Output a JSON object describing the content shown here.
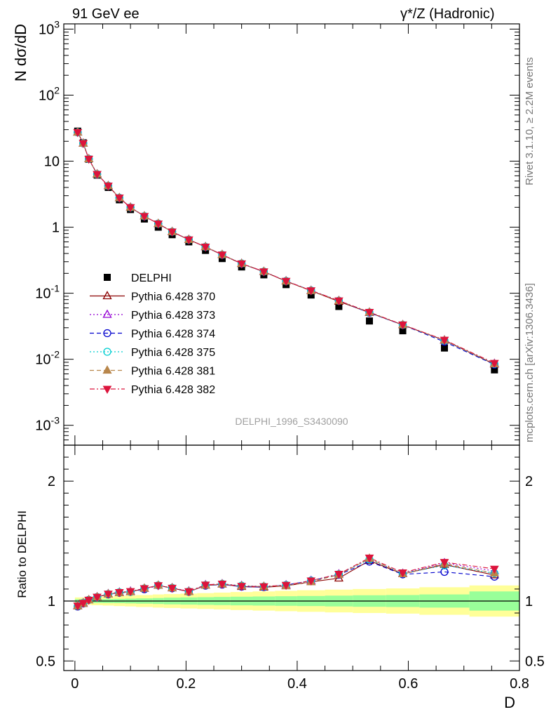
{
  "header": {
    "left": "91 GeV ee",
    "right": "γ*/Z (Hadronic)"
  },
  "side_text": {
    "rivet": "Rivet 3.1.10, ≥ 2.2M events",
    "site": "mcplots.cern.ch [arXiv:1306.3436]"
  },
  "watermark": "DELPHI_1996_S3430090",
  "colors": {
    "data": "#000000",
    "band_inner": "#99ff99",
    "band_outer": "#ffff99"
  },
  "chart_data": [
    {
      "type": "scatter",
      "panel": "main",
      "ylabel": "N dσ/dD",
      "yscale": "log",
      "ylim": [
        0.0005,
        1200
      ],
      "xlim": [
        -0.02,
        0.8
      ],
      "ytick_labels": [
        "10^3",
        "10^2",
        "10",
        "1",
        "10^-1",
        "10^-2",
        "10^-3"
      ],
      "legend_position": "left-middle",
      "x": [
        0.005,
        0.015,
        0.025,
        0.04,
        0.06,
        0.08,
        0.1,
        0.125,
        0.15,
        0.175,
        0.205,
        0.235,
        0.265,
        0.3,
        0.34,
        0.38,
        0.425,
        0.475,
        0.53,
        0.59,
        0.665,
        0.755
      ],
      "series": [
        {
          "name": "DELPHI",
          "marker": "filled-square",
          "color": "#000000",
          "values": [
            28.5,
            19.0,
            10.7,
            6.15,
            4.0,
            2.6,
            1.85,
            1.33,
            1.0,
            0.77,
            0.6,
            0.445,
            0.335,
            0.25,
            0.19,
            0.135,
            0.094,
            0.063,
            0.038,
            0.027,
            0.0148,
            0.0069
          ]
        },
        {
          "name": "Pythia 6.428 370",
          "marker": "open-triangle-up",
          "color": "#8b0000",
          "line": "solid",
          "values": [
            27.3,
            18.6,
            10.8,
            6.35,
            4.23,
            2.78,
            1.99,
            1.47,
            1.13,
            0.853,
            0.647,
            0.503,
            0.382,
            0.28,
            0.212,
            0.152,
            0.109,
            0.075,
            0.0508,
            0.0331,
            0.0193,
            0.0084
          ]
        },
        {
          "name": "Pythia 6.428 373",
          "marker": "open-triangle-up",
          "color": "#9400d3",
          "line": "dotted",
          "values": [
            27.4,
            18.7,
            10.8,
            6.36,
            4.24,
            2.79,
            2.0,
            1.47,
            1.13,
            0.855,
            0.649,
            0.505,
            0.383,
            0.282,
            0.213,
            0.153,
            0.11,
            0.0772,
            0.0513,
            0.0332,
            0.0195,
            0.00862
          ]
        },
        {
          "name": "Pythia 6.428 374",
          "marker": "open-circle",
          "color": "#0000cd",
          "line": "dashed",
          "values": [
            27.2,
            18.6,
            10.8,
            6.34,
            4.22,
            2.78,
            1.99,
            1.46,
            1.13,
            0.852,
            0.646,
            0.502,
            0.381,
            0.28,
            0.212,
            0.153,
            0.11,
            0.0768,
            0.0505,
            0.033,
            0.0184,
            0.0083
          ]
        },
        {
          "name": "Pythia 6.428 375",
          "marker": "open-circle",
          "color": "#00ced1",
          "line": "dotted",
          "values": [
            27.3,
            18.7,
            10.8,
            6.35,
            4.23,
            2.79,
            1.99,
            1.47,
            1.13,
            0.855,
            0.648,
            0.504,
            0.383,
            0.282,
            0.213,
            0.153,
            0.11,
            0.0771,
            0.0512,
            0.0332,
            0.0192,
            0.0085
          ]
        },
        {
          "name": "Pythia 6.428 381",
          "marker": "filled-triangle-up",
          "color": "#b8864b",
          "line": "dashed",
          "values": [
            27.3,
            18.6,
            10.8,
            6.35,
            4.23,
            2.78,
            1.99,
            1.47,
            1.13,
            0.853,
            0.647,
            0.503,
            0.382,
            0.281,
            0.213,
            0.152,
            0.109,
            0.0768,
            0.0515,
            0.0331,
            0.0194,
            0.0085
          ]
        },
        {
          "name": "Pythia 6.428 382",
          "marker": "filled-triangle-down",
          "color": "#dc143c",
          "line": "dashdot",
          "values": [
            27.4,
            18.7,
            10.8,
            6.36,
            4.24,
            2.79,
            2.0,
            1.47,
            1.13,
            0.854,
            0.648,
            0.505,
            0.383,
            0.281,
            0.213,
            0.153,
            0.11,
            0.0772,
            0.0517,
            0.0334,
            0.0196,
            0.00875
          ]
        }
      ]
    },
    {
      "type": "line",
      "panel": "ratio",
      "ylabel": "Ratio to DELPHI",
      "ylim": [
        0.42,
        2.3
      ],
      "xlim": [
        -0.02,
        0.8
      ],
      "xlabel": "D",
      "yticks": [
        0.5,
        1,
        2
      ],
      "ytick_labels": [
        "0.5",
        "1",
        "2"
      ],
      "xticks": [
        0,
        0.2,
        0.4,
        0.6,
        0.8
      ],
      "xtick_labels": [
        "0",
        "0.2",
        "0.4",
        "0.6",
        "0.8"
      ],
      "x": [
        0.005,
        0.015,
        0.025,
        0.04,
        0.06,
        0.08,
        0.1,
        0.125,
        0.15,
        0.175,
        0.205,
        0.235,
        0.265,
        0.3,
        0.34,
        0.38,
        0.425,
        0.475,
        0.53,
        0.59,
        0.665,
        0.755
      ],
      "x_edges": [
        [
          0,
          0.01
        ],
        [
          0.01,
          0.02
        ],
        [
          0.02,
          0.03
        ],
        [
          0.03,
          0.05
        ],
        [
          0.05,
          0.07
        ],
        [
          0.07,
          0.09
        ],
        [
          0.09,
          0.11
        ],
        [
          0.11,
          0.14
        ],
        [
          0.14,
          0.16
        ],
        [
          0.16,
          0.19
        ],
        [
          0.19,
          0.22
        ],
        [
          0.22,
          0.25
        ],
        [
          0.25,
          0.28
        ],
        [
          0.28,
          0.32
        ],
        [
          0.32,
          0.36
        ],
        [
          0.36,
          0.4
        ],
        [
          0.4,
          0.45
        ],
        [
          0.45,
          0.5
        ],
        [
          0.5,
          0.56
        ],
        [
          0.56,
          0.62
        ],
        [
          0.62,
          0.71
        ],
        [
          0.71,
          0.8
        ]
      ],
      "band_inner": [
        0.015,
        0.015,
        0.015,
        0.016,
        0.017,
        0.018,
        0.02,
        0.022,
        0.025,
        0.028,
        0.03,
        0.032,
        0.034,
        0.036,
        0.038,
        0.04,
        0.042,
        0.045,
        0.048,
        0.05,
        0.055,
        0.08
      ],
      "band_outer": [
        0.03,
        0.03,
        0.032,
        0.035,
        0.038,
        0.042,
        0.045,
        0.05,
        0.055,
        0.058,
        0.062,
        0.066,
        0.07,
        0.075,
        0.08,
        0.085,
        0.09,
        0.095,
        0.1,
        0.105,
        0.115,
        0.13
      ],
      "series": [
        {
          "name": "Pythia 6.428 370",
          "color": "#8b0000",
          "values": [
            0.958,
            0.979,
            1.009,
            1.033,
            1.058,
            1.069,
            1.076,
            1.105,
            1.13,
            1.108,
            1.078,
            1.13,
            1.14,
            1.12,
            1.115,
            1.126,
            1.16,
            1.19,
            1.337,
            1.226,
            1.304,
            1.217
          ]
        },
        {
          "name": "Pythia 6.428 373",
          "color": "#9400d3",
          "values": [
            0.961,
            0.984,
            1.009,
            1.034,
            1.06,
            1.073,
            1.081,
            1.105,
            1.13,
            1.11,
            1.082,
            1.135,
            1.143,
            1.128,
            1.121,
            1.133,
            1.17,
            1.225,
            1.35,
            1.23,
            1.318,
            1.25
          ]
        },
        {
          "name": "Pythia 6.428 374",
          "color": "#0000cd",
          "values": [
            0.954,
            0.979,
            1.009,
            1.031,
            1.055,
            1.069,
            1.076,
            1.098,
            1.13,
            1.106,
            1.077,
            1.128,
            1.137,
            1.12,
            1.116,
            1.133,
            1.17,
            1.219,
            1.329,
            1.222,
            1.243,
            1.203
          ]
        },
        {
          "name": "Pythia 6.428 375",
          "color": "#00ced1",
          "values": [
            0.958,
            0.984,
            1.009,
            1.033,
            1.058,
            1.073,
            1.076,
            1.105,
            1.13,
            1.11,
            1.08,
            1.133,
            1.143,
            1.128,
            1.121,
            1.133,
            1.17,
            1.224,
            1.347,
            1.23,
            1.297,
            1.232
          ]
        },
        {
          "name": "Pythia 6.428 381",
          "color": "#b8864b",
          "values": [
            0.958,
            0.979,
            1.009,
            1.033,
            1.058,
            1.069,
            1.076,
            1.105,
            1.13,
            1.108,
            1.078,
            1.13,
            1.14,
            1.124,
            1.121,
            1.126,
            1.16,
            1.219,
            1.355,
            1.226,
            1.311,
            1.232
          ]
        },
        {
          "name": "Pythia 6.428 382",
          "color": "#dc143c",
          "values": [
            0.961,
            0.984,
            1.009,
            1.034,
            1.06,
            1.073,
            1.081,
            1.105,
            1.13,
            1.109,
            1.08,
            1.135,
            1.143,
            1.124,
            1.121,
            1.133,
            1.17,
            1.225,
            1.361,
            1.237,
            1.324,
            1.268
          ]
        }
      ]
    }
  ]
}
